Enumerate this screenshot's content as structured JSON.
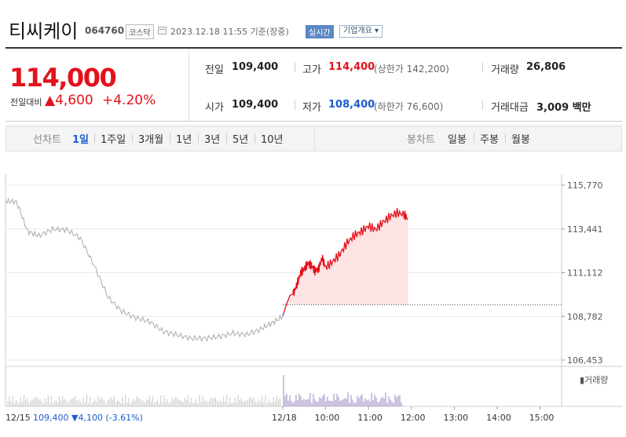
{
  "header": {
    "name": "티씨케이",
    "code": "064760",
    "market": "코스닥",
    "datetime": "2023.12.18 11:55 기준(장중)",
    "live_badge": "실시간",
    "company_btn": "기업개요 ▾"
  },
  "summary": {
    "price": "114,000",
    "change_label": "전일대비",
    "change_amount": "▲4,600",
    "change_percent": "+4.20%",
    "prev_label": "전일",
    "prev_value": "109,400",
    "open_label": "시가",
    "open_value": "109,400",
    "high_label": "고가",
    "high_value": "114,400",
    "upper_limit": "(상한가 142,200)",
    "low_label": "저가",
    "low_value": "108,400",
    "lower_limit": "(하한가 76,600)",
    "volume_label": "거래량",
    "volume_value": "26,806",
    "amount_label": "거래대금",
    "amount_value": "3,009 백만"
  },
  "tabs": {
    "line_label": "선차트",
    "line_items": [
      "1일",
      "1주일",
      "3개월",
      "1년",
      "3년",
      "5년",
      "10년"
    ],
    "active": "1일",
    "candle_label": "봉차트",
    "candle_items": [
      "일봉",
      "주봉",
      "월봉"
    ]
  },
  "chart_data": {
    "type": "line",
    "y_ticks": [
      "115,770",
      "113,441",
      "111,112",
      "108,782",
      "106,453"
    ],
    "ylim": [
      106453,
      115770
    ],
    "x_ticks": [
      "12/18",
      "10:00",
      "11:00",
      "12:00",
      "13:00",
      "14:00",
      "15:00"
    ],
    "base_value": 109400,
    "prev_day": {
      "label": "12/15",
      "close": "109,400",
      "change": "▼4,100",
      "change_pct": "(-3.61%)",
      "x": [
        0,
        0.04,
        0.08,
        0.12,
        0.17,
        0.22,
        0.27,
        0.32,
        0.37,
        0.42,
        0.47,
        0.52,
        0.57,
        0.62,
        0.67,
        0.72,
        0.77,
        0.82,
        0.87,
        0.92,
        0.96,
        1.0
      ],
      "values": [
        115000,
        114900,
        113500,
        113000,
        113400,
        113200,
        113000,
        111500,
        110000,
        109000,
        108700,
        108300,
        108000,
        107800,
        107800,
        107600,
        107700,
        107700,
        107800,
        108100,
        108600,
        108800
      ]
    },
    "today": {
      "times": [
        "09:00",
        "09:05",
        "09:10",
        "09:15",
        "09:20",
        "09:25",
        "09:30",
        "09:35",
        "09:40",
        "09:45",
        "09:50",
        "09:55",
        "10:00",
        "10:10",
        "10:20",
        "10:30",
        "10:40",
        "10:50",
        "11:00",
        "11:10",
        "11:20",
        "11:30",
        "11:40",
        "11:50",
        "11:55"
      ],
      "values": [
        108800,
        109400,
        109900,
        110000,
        110500,
        111100,
        111300,
        111600,
        111500,
        111200,
        111300,
        111900,
        111400,
        111700,
        112100,
        112700,
        113100,
        113300,
        113600,
        113400,
        113800,
        114100,
        114300,
        114200,
        114000
      ]
    },
    "volume_label": "거래량"
  }
}
